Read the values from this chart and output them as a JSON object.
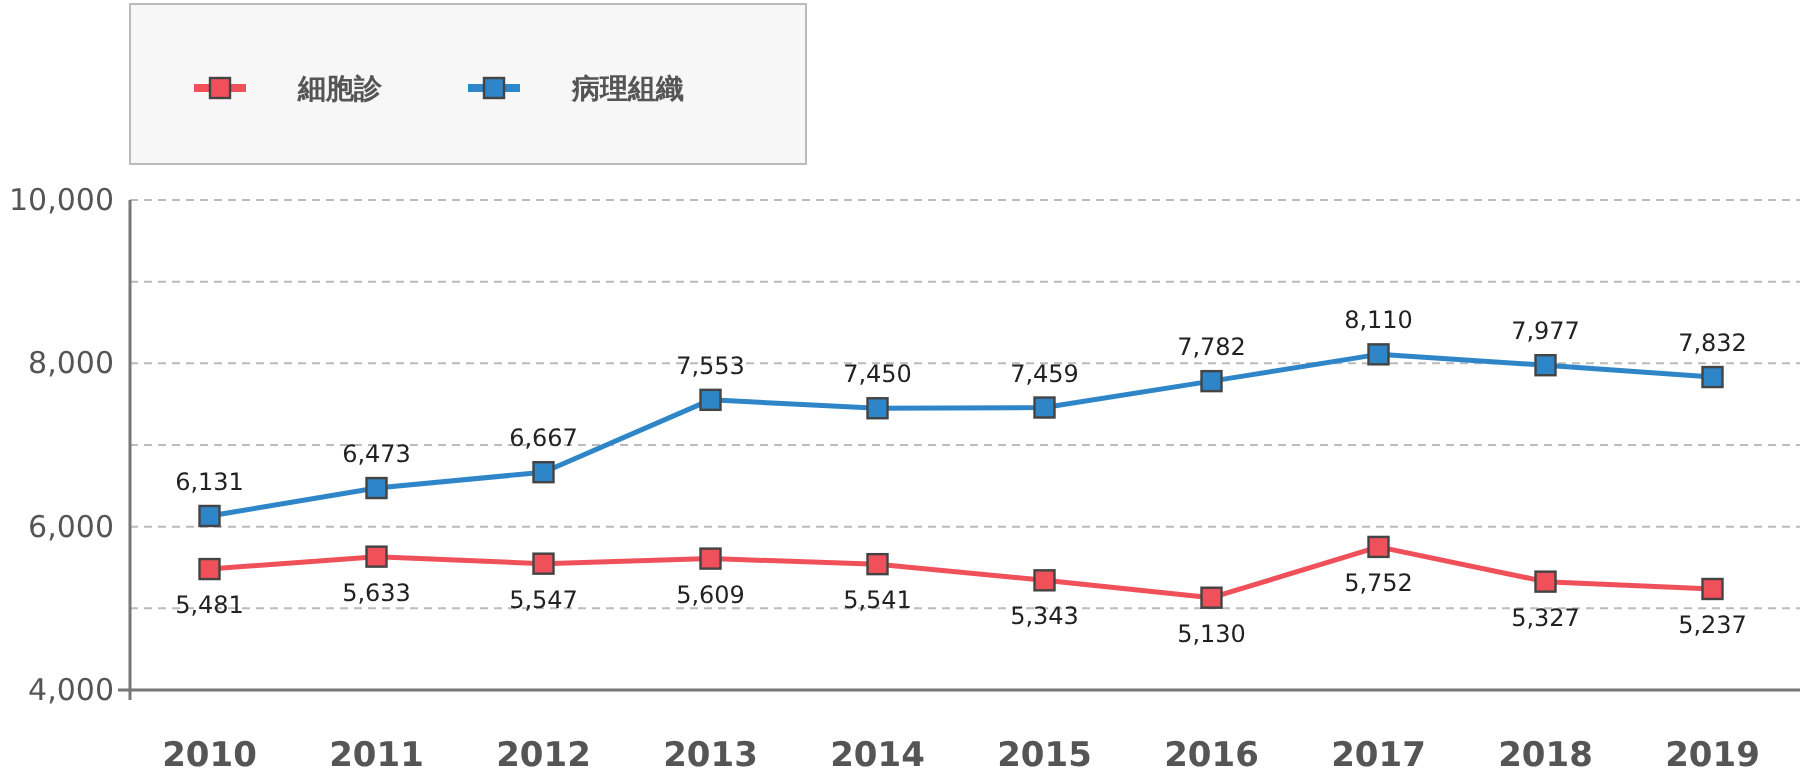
{
  "chart_data": {
    "type": "line",
    "categories": [
      "2010",
      "2011",
      "2012",
      "2013",
      "2014",
      "2015",
      "2016",
      "2017",
      "2018",
      "2019"
    ],
    "series": [
      {
        "name": "細胞診",
        "color": "#f0505a",
        "values": [
          5481,
          5633,
          5547,
          5609,
          5541,
          5343,
          5130,
          5752,
          5327,
          5237
        ],
        "value_labels": [
          "5,481",
          "5,633",
          "5,547",
          "5,609",
          "5,541",
          "5,343",
          "5,130",
          "5,752",
          "5,327",
          "5,237"
        ]
      },
      {
        "name": "病理組織",
        "color": "#2e86c8",
        "values": [
          6131,
          6473,
          6667,
          7553,
          7450,
          7459,
          7782,
          8110,
          7977,
          7832
        ],
        "value_labels": [
          "6,131",
          "6,473",
          "6,667",
          "7,553",
          "7,450",
          "7,459",
          "7,782",
          "8,110",
          "7,977",
          "7,832"
        ]
      }
    ],
    "ylim": [
      4000,
      10000
    ],
    "yticks": [
      {
        "value": 4000,
        "label": "4,000"
      },
      {
        "value": 5000,
        "label": null
      },
      {
        "value": 6000,
        "label": "6,000"
      },
      {
        "value": 7000,
        "label": null
      },
      {
        "value": 8000,
        "label": "8,000"
      },
      {
        "value": 9000,
        "label": null
      },
      {
        "value": 10000,
        "label": "10,000"
      }
    ],
    "grid": "y",
    "legend": "top left",
    "marker": "square",
    "line_style": "solid"
  }
}
